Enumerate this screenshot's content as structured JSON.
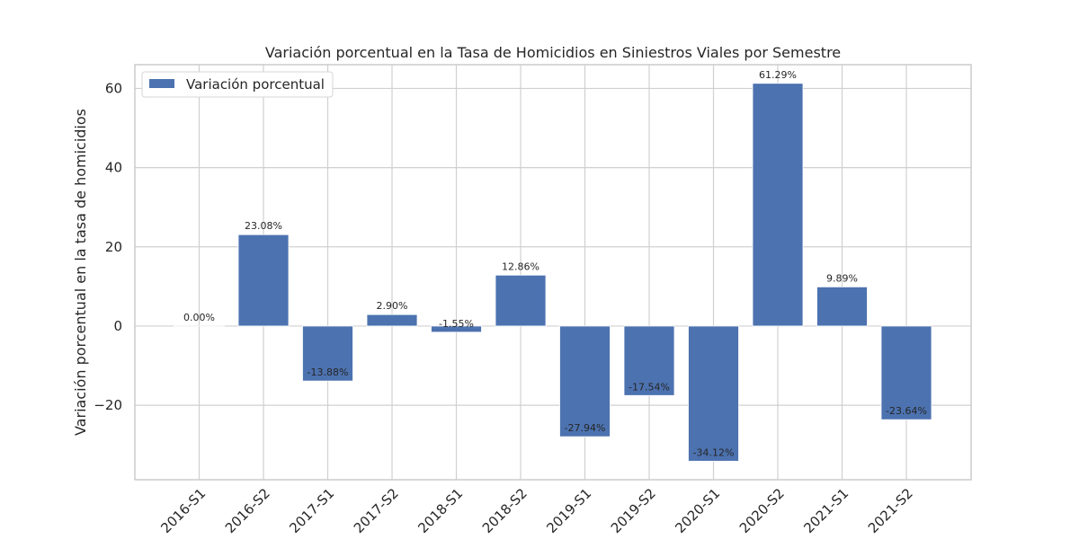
{
  "chart_data": {
    "type": "bar",
    "title": "Variación porcentual en la Tasa de Homicidios en Siniestros Viales por Semestre",
    "xlabel": "",
    "ylabel": "Variación porcentual en la tasa de homicidios",
    "categories": [
      "2016-S1",
      "2016-S2",
      "2017-S1",
      "2017-S2",
      "2018-S1",
      "2018-S2",
      "2019-S1",
      "2019-S2",
      "2020-S1",
      "2020-S2",
      "2021-S1",
      "2021-S2"
    ],
    "series": [
      {
        "name": "Variación porcentual",
        "values": [
          0.0,
          23.08,
          -13.88,
          2.9,
          -1.55,
          12.86,
          -27.94,
          -17.54,
          -34.12,
          61.29,
          9.89,
          -23.64
        ],
        "labels": [
          "0.00%",
          "23.08%",
          "-13.88%",
          "2.90%",
          "-1.55%",
          "12.86%",
          "-27.94%",
          "-17.54%",
          "-34.12%",
          "61.29%",
          "9.89%",
          "-23.64%"
        ]
      }
    ],
    "ylim": [
      -38.8,
      66.0
    ],
    "yticks": [
      -20,
      0,
      20,
      40,
      60
    ],
    "ytick_labels": [
      "−20",
      "0",
      "20",
      "40",
      "60"
    ],
    "grid": true,
    "legend_position": "top-left",
    "colors": {
      "bar": "#4c72b0",
      "grid": "#d0d0d0",
      "axis": "#cccccc",
      "text": "#262626"
    }
  }
}
